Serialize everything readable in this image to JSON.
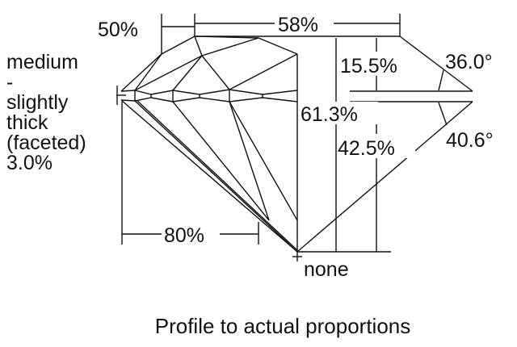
{
  "girdle_label": [
    "medium",
    "-",
    "slightly",
    "thick",
    "(faceted)",
    "3.0%"
  ],
  "lower_half_label": "50%",
  "table_label": "58%",
  "crown_height_label": "15.5%",
  "crown_angle_label": "36.0°",
  "total_depth_label": "61.3%",
  "pavilion_depth_label": "42.5%",
  "pavilion_angle_label": "40.6°",
  "lower_girdle_label": "80%",
  "culet_label": "none",
  "caption": "Profile to actual proportions",
  "line_color": "#111111"
}
